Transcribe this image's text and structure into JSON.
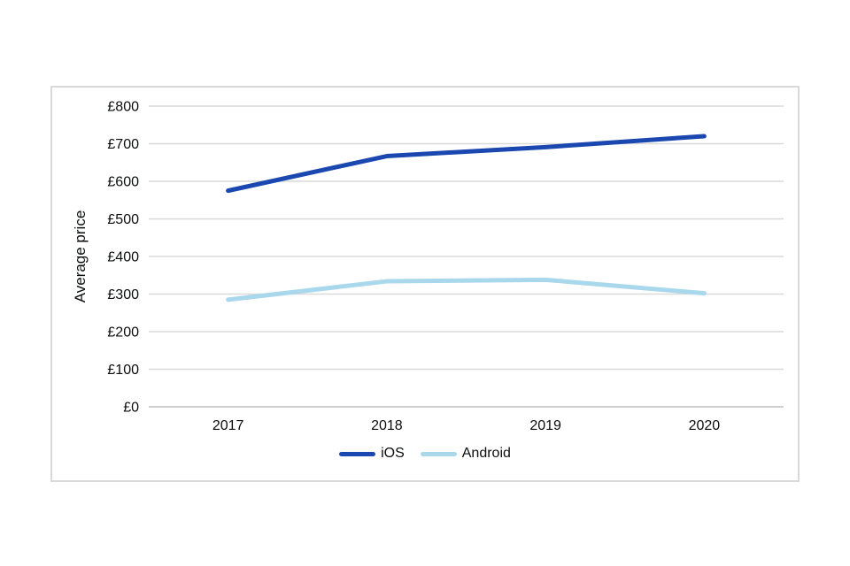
{
  "chart_data": {
    "type": "line",
    "categories": [
      "2017",
      "2018",
      "2019",
      "2020"
    ],
    "series": [
      {
        "name": "iOS",
        "color": "#1a47b0",
        "values": [
          575,
          667,
          691,
          720
        ]
      },
      {
        "name": "Android",
        "color": "#a9d8ec",
        "values": [
          285,
          334,
          338,
          302
        ]
      }
    ],
    "title": "",
    "xlabel": "",
    "ylabel": "Average price",
    "ylim": [
      0,
      800
    ],
    "ytick_step": 100,
    "ytick_prefix": "£",
    "grid": "horizontal",
    "legend_position": "bottom-center"
  },
  "colors": {
    "gridline": "#d9d9d9",
    "zero_axis": "#d0d0d0",
    "text": "#0b0c0c",
    "card_border": "#d9d9d9",
    "background": "#ffffff"
  }
}
